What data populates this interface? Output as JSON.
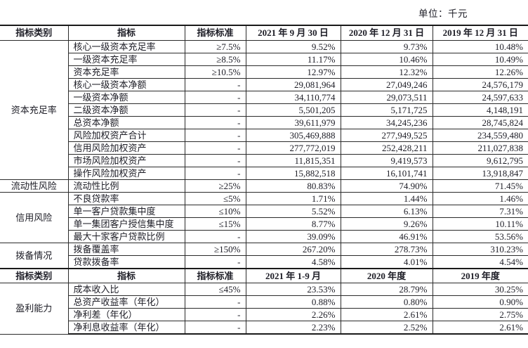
{
  "unit_label": "单位：千元",
  "colors": {
    "background": "#ffffff",
    "text": "#1d1d26",
    "border": "#2b2b2b"
  },
  "table": {
    "header_block1": {
      "category": "指标类别",
      "indicator": "指标",
      "standard": "指标标准",
      "periods": [
        "2021 年 9 月 30 日",
        "2020 年 12 月 31 日",
        "2019 年 12 月 31 日"
      ]
    },
    "sections1": [
      {
        "category": "资本充足率",
        "rows": [
          [
            "核心一级资本充足率",
            "≥7.5%",
            "9.52%",
            "9.73%",
            "10.48%"
          ],
          [
            "一级资本充足率",
            "≥8.5%",
            "11.17%",
            "10.46%",
            "10.49%"
          ],
          [
            "资本充足率",
            "≥10.5%",
            "12.97%",
            "12.32%",
            "12.26%"
          ],
          [
            "核心一级资本净额",
            "-",
            "29,081,964",
            "27,049,246",
            "24,576,179"
          ],
          [
            "一级资本净额",
            "-",
            "34,110,774",
            "29,073,511",
            "24,597,633"
          ],
          [
            "二级资本净额",
            "-",
            "5,501,205",
            "5,171,725",
            "4,148,191"
          ],
          [
            "总资本净额",
            "-",
            "39,611,979",
            "34,245,236",
            "28,745,824"
          ],
          [
            "风险加权资产合计",
            "-",
            "305,469,888",
            "277,949,525",
            "234,559,480"
          ],
          [
            "信用风险加权资产",
            "-",
            "277,772,019",
            "252,428,211",
            "211,027,838"
          ],
          [
            "市场风险加权资产",
            "-",
            "11,815,351",
            "9,419,573",
            "9,612,795"
          ],
          [
            "操作风险加权资产",
            "-",
            "15,882,518",
            "16,101,741",
            "13,918,847"
          ]
        ]
      },
      {
        "category": "流动性风险",
        "rows": [
          [
            "流动性比例",
            "≥25%",
            "80.83%",
            "74.90%",
            "71.45%"
          ]
        ]
      },
      {
        "category": "信用风险",
        "rows": [
          [
            "不良贷款率",
            "≤5%",
            "1.71%",
            "1.44%",
            "1.46%"
          ],
          [
            "单一客户贷款集中度",
            "≤10%",
            "5.52%",
            "6.13%",
            "7.31%"
          ],
          [
            "单一集团客户授信集中度",
            "≤15%",
            "8.77%",
            "9.26%",
            "10.11%"
          ],
          [
            "最大十家客户贷款比例",
            "-",
            "39.09%",
            "46.91%",
            "53.56%"
          ]
        ]
      },
      {
        "category": "拨备情况",
        "rows": [
          [
            "拨备覆盖率",
            "≥150%",
            "267.20%",
            "278.73%",
            "310.23%"
          ],
          [
            "贷款拨备率",
            "-",
            "4.58%",
            "4.01%",
            "4.54%"
          ]
        ]
      }
    ],
    "header_block2": {
      "category": "指标类别",
      "indicator": "指标",
      "standard": "指标标准",
      "periods": [
        "2021 年 1-9 月",
        "2020 年度",
        "2019 年度"
      ]
    },
    "sections2": [
      {
        "category": "盈利能力",
        "rows": [
          [
            "成本收入比",
            "≤45%",
            "23.53%",
            "28.79%",
            "30.25%"
          ],
          [
            "总资产收益率（年化）",
            "-",
            "0.88%",
            "0.80%",
            "0.90%"
          ],
          [
            "净利差（年化）",
            "-",
            "2.26%",
            "2.61%",
            "2.75%"
          ],
          [
            "净利息收益率（年化）",
            "-",
            "2.23%",
            "2.52%",
            "2.61%"
          ]
        ]
      }
    ]
  }
}
